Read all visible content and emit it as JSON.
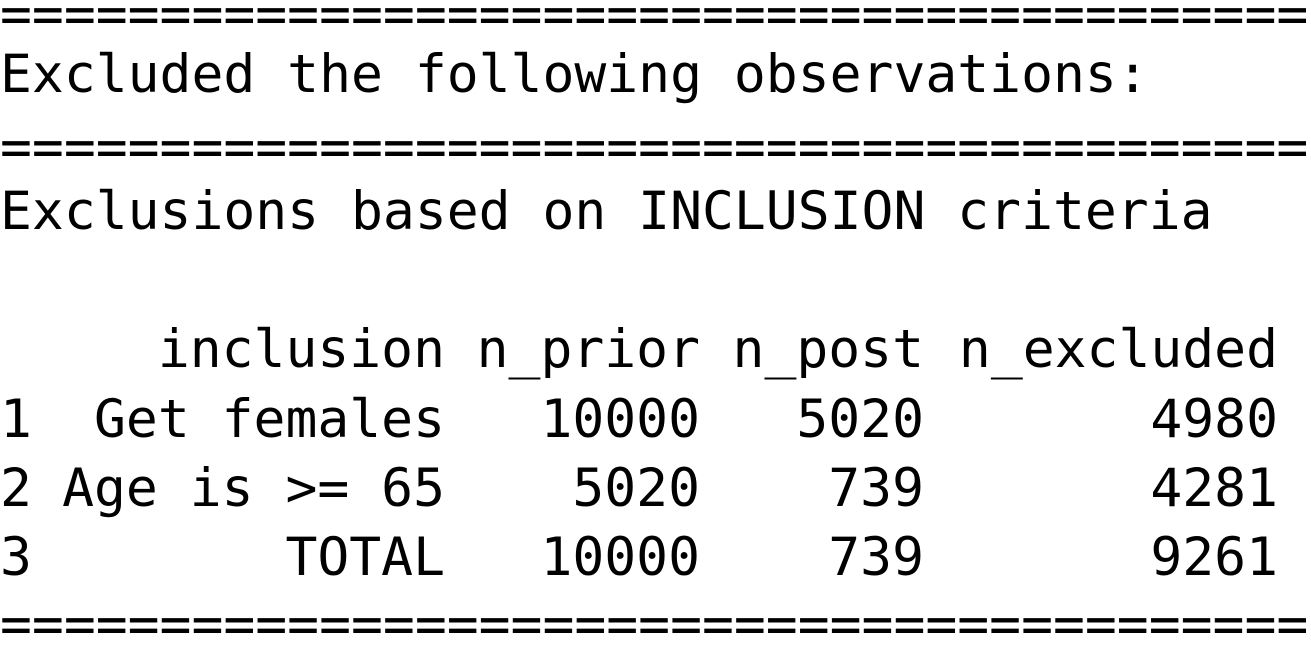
{
  "separator": "=========================================",
  "header": {
    "title": "Excluded the following observations:",
    "subtitle": "Exclusions based on INCLUSION criteria"
  },
  "table": {
    "columns": [
      "inclusion",
      "n_prior",
      "n_post",
      "n_excluded"
    ],
    "rows": [
      {
        "index": "1",
        "cells": [
          "Get females",
          10000,
          5020,
          4980
        ]
      },
      {
        "index": "2",
        "cells": [
          "Age is >= 65",
          5020,
          739,
          4281
        ]
      },
      {
        "index": "3",
        "cells": [
          "TOTAL",
          10000,
          739,
          9261
        ]
      }
    ]
  }
}
